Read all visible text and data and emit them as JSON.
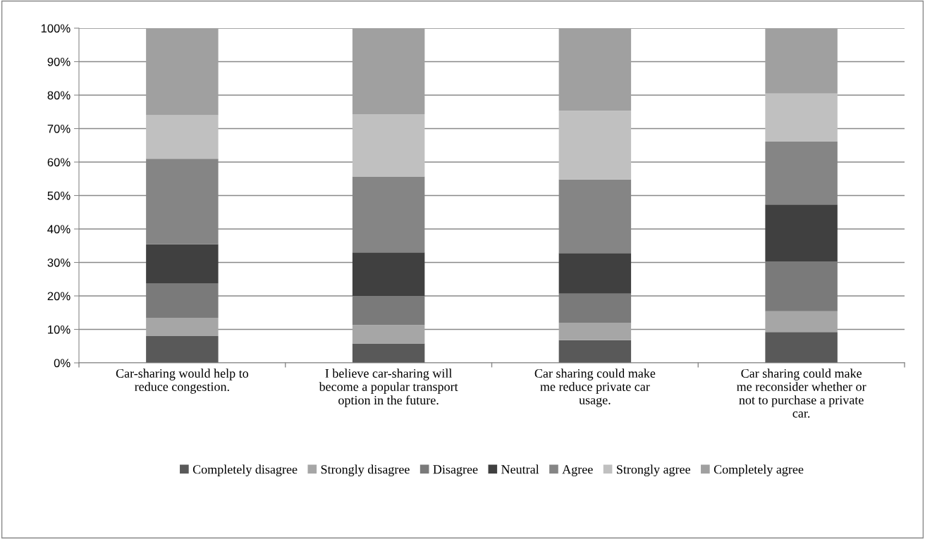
{
  "chart_data": {
    "type": "bar",
    "stacked": true,
    "categories": [
      "Car-sharing would help to\nreduce congestion.",
      "I believe car-sharing will\nbecome a popular transport\noption in the future.",
      "Car sharing could make\nme reduce private car\nusage.",
      "Car sharing could make\nme reconsider whether or\nnot to purchase a private\ncar."
    ],
    "series": [
      {
        "name": "Completely disagree",
        "color": "#595959",
        "values": [
          8,
          5.8,
          6.8,
          9.2
        ]
      },
      {
        "name": "Strongly disagree",
        "color": "#a6a6a6",
        "values": [
          5.5,
          5.5,
          5.2,
          6.2
        ]
      },
      {
        "name": "Disagree",
        "color": "#7a7a7a",
        "values": [
          10.3,
          8.7,
          8.7,
          14.9
        ]
      },
      {
        "name": "Neutral",
        "color": "#404040",
        "values": [
          11.6,
          13,
          12.1,
          17
        ]
      },
      {
        "name": "Agree",
        "color": "#858585",
        "values": [
          25.6,
          22.7,
          22,
          18.8
        ]
      },
      {
        "name": "Strongly agree",
        "color": "#c0c0c0",
        "values": [
          13,
          18.6,
          20.5,
          14.4
        ]
      },
      {
        "name": "Completely agree",
        "color": "#a0a0a0",
        "values": [
          26,
          25.7,
          24.7,
          19.5
        ]
      }
    ],
    "ylim": [
      0,
      100
    ],
    "yticks": [
      {
        "value": 0,
        "label": "0%"
      },
      {
        "value": 10,
        "label": "10%"
      },
      {
        "value": 20,
        "label": "20%"
      },
      {
        "value": 30,
        "label": "30%"
      },
      {
        "value": 40,
        "label": "40%"
      },
      {
        "value": 50,
        "label": "50%"
      },
      {
        "value": 60,
        "label": "60%"
      },
      {
        "value": 70,
        "label": "70%"
      },
      {
        "value": 80,
        "label": "80%"
      },
      {
        "value": 90,
        "label": "90%"
      },
      {
        "value": 100,
        "label": "100%"
      }
    ],
    "grid": "y",
    "legend": "bottom"
  }
}
